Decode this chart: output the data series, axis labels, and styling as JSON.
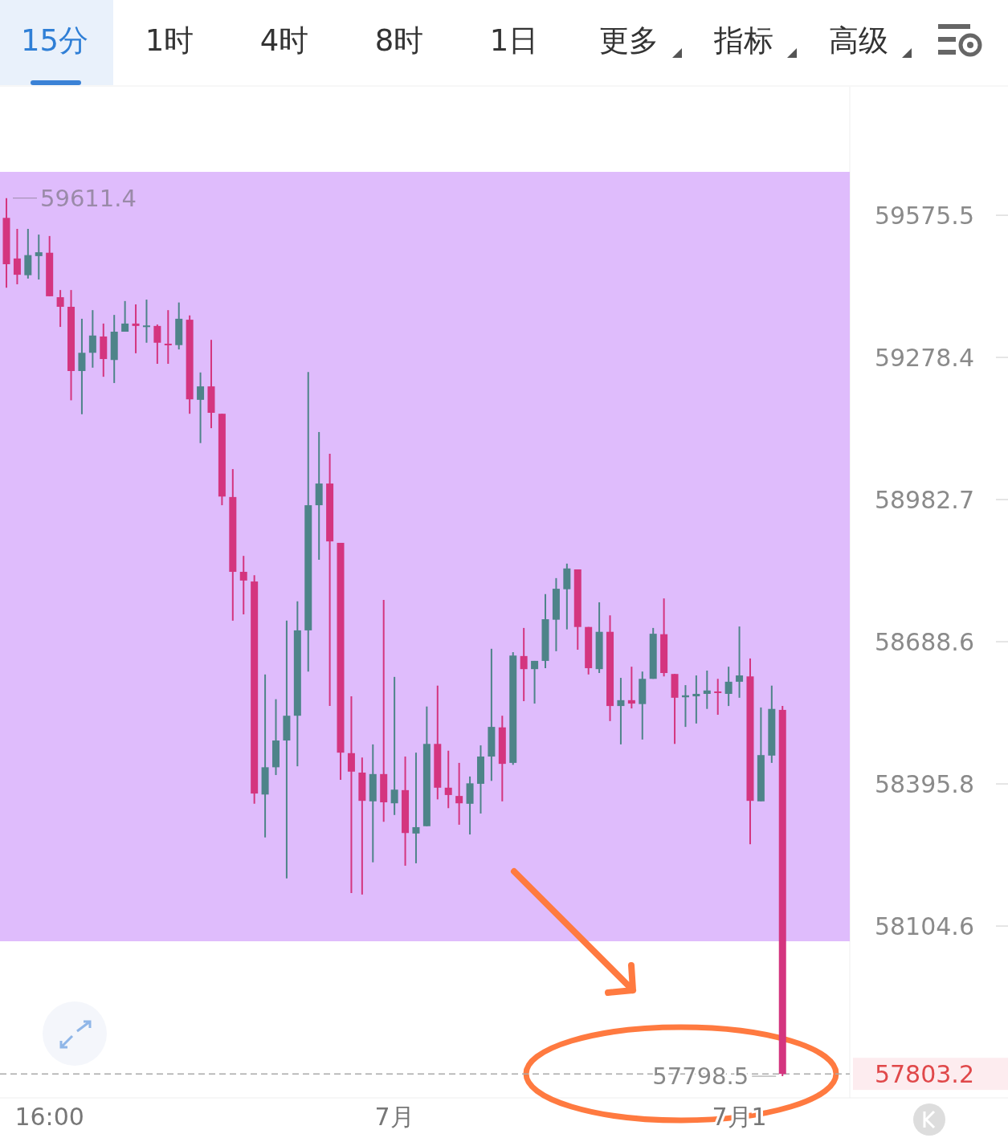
{
  "chart_data": {
    "type": "candlestick",
    "log": true,
    "categories": [
      null,
      null,
      null,
      null,
      "16:00",
      null,
      null,
      null,
      null,
      null,
      null,
      null,
      null,
      null,
      null,
      null,
      null,
      null,
      null,
      null,
      null,
      null,
      null,
      null,
      null,
      null,
      null,
      null,
      null,
      null,
      null,
      null,
      null,
      null,
      null,
      null,
      "7月",
      null,
      null,
      null,
      null,
      null,
      null,
      null,
      null,
      null,
      null,
      null,
      null,
      null,
      null,
      null,
      null,
      null,
      null,
      null,
      null,
      null,
      null,
      null,
      null,
      null,
      null,
      null,
      null,
      null,
      null,
      null,
      "7月1",
      null,
      null,
      null,
      null
    ],
    "ohlc": [
      [
        59570,
        59611.4,
        59424,
        59473
      ],
      [
        59485,
        59547,
        59431,
        59451
      ],
      [
        59450,
        59547,
        59443,
        59492
      ],
      [
        59490,
        59535,
        59441,
        59498
      ],
      [
        59497,
        59532,
        59406,
        59406
      ],
      [
        59404,
        59419,
        59342,
        59384
      ],
      [
        59384,
        59419,
        59189,
        59250
      ],
      [
        59250,
        59359,
        59160,
        59288
      ],
      [
        59288,
        59377,
        59257,
        59324
      ],
      [
        59322,
        59349,
        59238,
        59275
      ],
      [
        59273,
        59367,
        59225,
        59332
      ],
      [
        59332,
        59396,
        59332,
        59349
      ],
      [
        59349,
        59389,
        59287,
        59344
      ],
      [
        59344,
        59399,
        59309,
        59345
      ],
      [
        59344,
        59347,
        59265,
        59309
      ],
      [
        59307,
        59377,
        59265,
        59304
      ],
      [
        59304,
        59393,
        59295,
        59359
      ],
      [
        59357,
        59366,
        59161,
        59191
      ],
      [
        59190,
        59247,
        59100,
        59218
      ],
      [
        59218,
        59315,
        59131,
        59163
      ],
      [
        59161,
        59161,
        58971,
        58989
      ],
      [
        58988,
        59046,
        58732,
        58833
      ],
      [
        58833,
        58866,
        58745,
        58815
      ],
      [
        58813,
        58826,
        58355,
        58376
      ],
      [
        58374,
        58621,
        58286,
        58430
      ],
      [
        58430,
        58570,
        58414,
        58485
      ],
      [
        58485,
        58732,
        58202,
        58536
      ],
      [
        58536,
        58772,
        58432,
        58712
      ],
      [
        58712,
        59248,
        58627,
        58971
      ],
      [
        58971,
        59123,
        58858,
        59016
      ],
      [
        59016,
        59078,
        58556,
        58896
      ],
      [
        58893,
        58893,
        58404,
        58460
      ],
      [
        58459,
        58576,
        58172,
        58421
      ],
      [
        58419,
        58450,
        58169,
        58361
      ],
      [
        58360,
        58477,
        58235,
        58416
      ],
      [
        58416,
        58775,
        58318,
        58358
      ],
      [
        58356,
        58616,
        58332,
        58384
      ],
      [
        58383,
        58452,
        58228,
        58295
      ],
      [
        58294,
        58460,
        58233,
        58307
      ],
      [
        58309,
        58555,
        58309,
        58478
      ],
      [
        58478,
        58598,
        58364,
        58388
      ],
      [
        58388,
        58464,
        58346,
        58373
      ],
      [
        58371,
        58439,
        58312,
        58356
      ],
      [
        58355,
        58411,
        58292,
        58397
      ],
      [
        58396,
        58475,
        58335,
        58452
      ],
      [
        58452,
        58674,
        58402,
        58513
      ],
      [
        58512,
        58536,
        58360,
        58437
      ],
      [
        58439,
        58667,
        58435,
        58660
      ],
      [
        58659,
        58717,
        58566,
        58632
      ],
      [
        58632,
        58649,
        58561,
        58649
      ],
      [
        58649,
        58787,
        58634,
        58735
      ],
      [
        58734,
        58820,
        58669,
        58798
      ],
      [
        58797,
        58850,
        58714,
        58840
      ],
      [
        58838,
        58838,
        58672,
        58719
      ],
      [
        58719,
        58719,
        58621,
        58634
      ],
      [
        58632,
        58770,
        58624,
        58709
      ],
      [
        58709,
        58743,
        58525,
        58556
      ],
      [
        58556,
        58614,
        58477,
        58568
      ],
      [
        58568,
        58637,
        58551,
        58561
      ],
      [
        58560,
        58627,
        58487,
        58612
      ],
      [
        58612,
        58717,
        58612,
        58705
      ],
      [
        58704,
        58778,
        58617,
        58624
      ],
      [
        58622,
        58622,
        58478,
        58573
      ],
      [
        58574,
        58599,
        58513,
        58578
      ],
      [
        58576,
        58619,
        58520,
        58581
      ],
      [
        58581,
        58629,
        58550,
        58588
      ],
      [
        58586,
        58612,
        58538,
        58583
      ],
      [
        58581,
        58637,
        58556,
        58606
      ],
      [
        58606,
        58720,
        58573,
        58619
      ],
      [
        58617,
        58654,
        58272,
        58361
      ],
      [
        58360,
        58553,
        58360,
        58455
      ],
      [
        58454,
        58598,
        58439,
        58550
      ],
      [
        58548,
        58556,
        57798.5,
        57803.2
      ]
    ],
    "colors": [
      "#d4357f",
      "#d4357f",
      "#4e8489",
      "#4e8489",
      "#d4357f",
      "#d4357f",
      "#d4357f",
      "#4e8489",
      "#4e8489",
      "#d4357f",
      "#4e8489",
      "#4e8489",
      "#d4357f",
      "#4e8489",
      "#d4357f",
      "#d4357f",
      "#4e8489",
      "#d4357f",
      "#4e8489",
      "#d4357f",
      "#d4357f",
      "#d4357f",
      "#d4357f",
      "#d4357f",
      "#4e8489",
      "#4e8489",
      "#4e8489",
      "#4e8489",
      "#4e8489",
      "#4e8489",
      "#d4357f",
      "#d4357f",
      "#d4357f",
      "#d4357f",
      "#4e8489",
      "#d4357f",
      "#4e8489",
      "#d4357f",
      "#4e8489",
      "#4e8489",
      "#d4357f",
      "#d4357f",
      "#d4357f",
      "#4e8489",
      "#4e8489",
      "#4e8489",
      "#d4357f",
      "#4e8489",
      "#d4357f",
      "#4e8489",
      "#4e8489",
      "#4e8489",
      "#4e8489",
      "#d4357f",
      "#d4357f",
      "#4e8489",
      "#d4357f",
      "#4e8489",
      "#d4357f",
      "#4e8489",
      "#4e8489",
      "#d4357f",
      "#d4357f",
      "#4e8489",
      "#4e8489",
      "#4e8489",
      "#d4357f",
      "#4e8489",
      "#4e8489",
      "#d4357f",
      "#4e8489",
      "#4e8489",
      "#d4357f"
    ],
    "ylim": [
      57757.8,
      59845.4
    ],
    "yticks": [
      59575.5,
      59278.4,
      58982.7,
      58688.6,
      58395.8,
      58104.6
    ],
    "bands": [
      {
        "axis": "y",
        "from": 58073.5,
        "to": 59666.5,
        "color": "#dfbcfc"
      }
    ],
    "ref_lines": [
      {
        "axis": "y",
        "value": 57803.2,
        "label": "57803.2",
        "color": "#aaaaaa",
        "line_style": "dashed"
      }
    ],
    "annotations": [
      "15分",
      "1时",
      "4时",
      "8时",
      "1日",
      "更多",
      "指标",
      "高级",
      "59611.4",
      "57798.5"
    ]
  }
}
